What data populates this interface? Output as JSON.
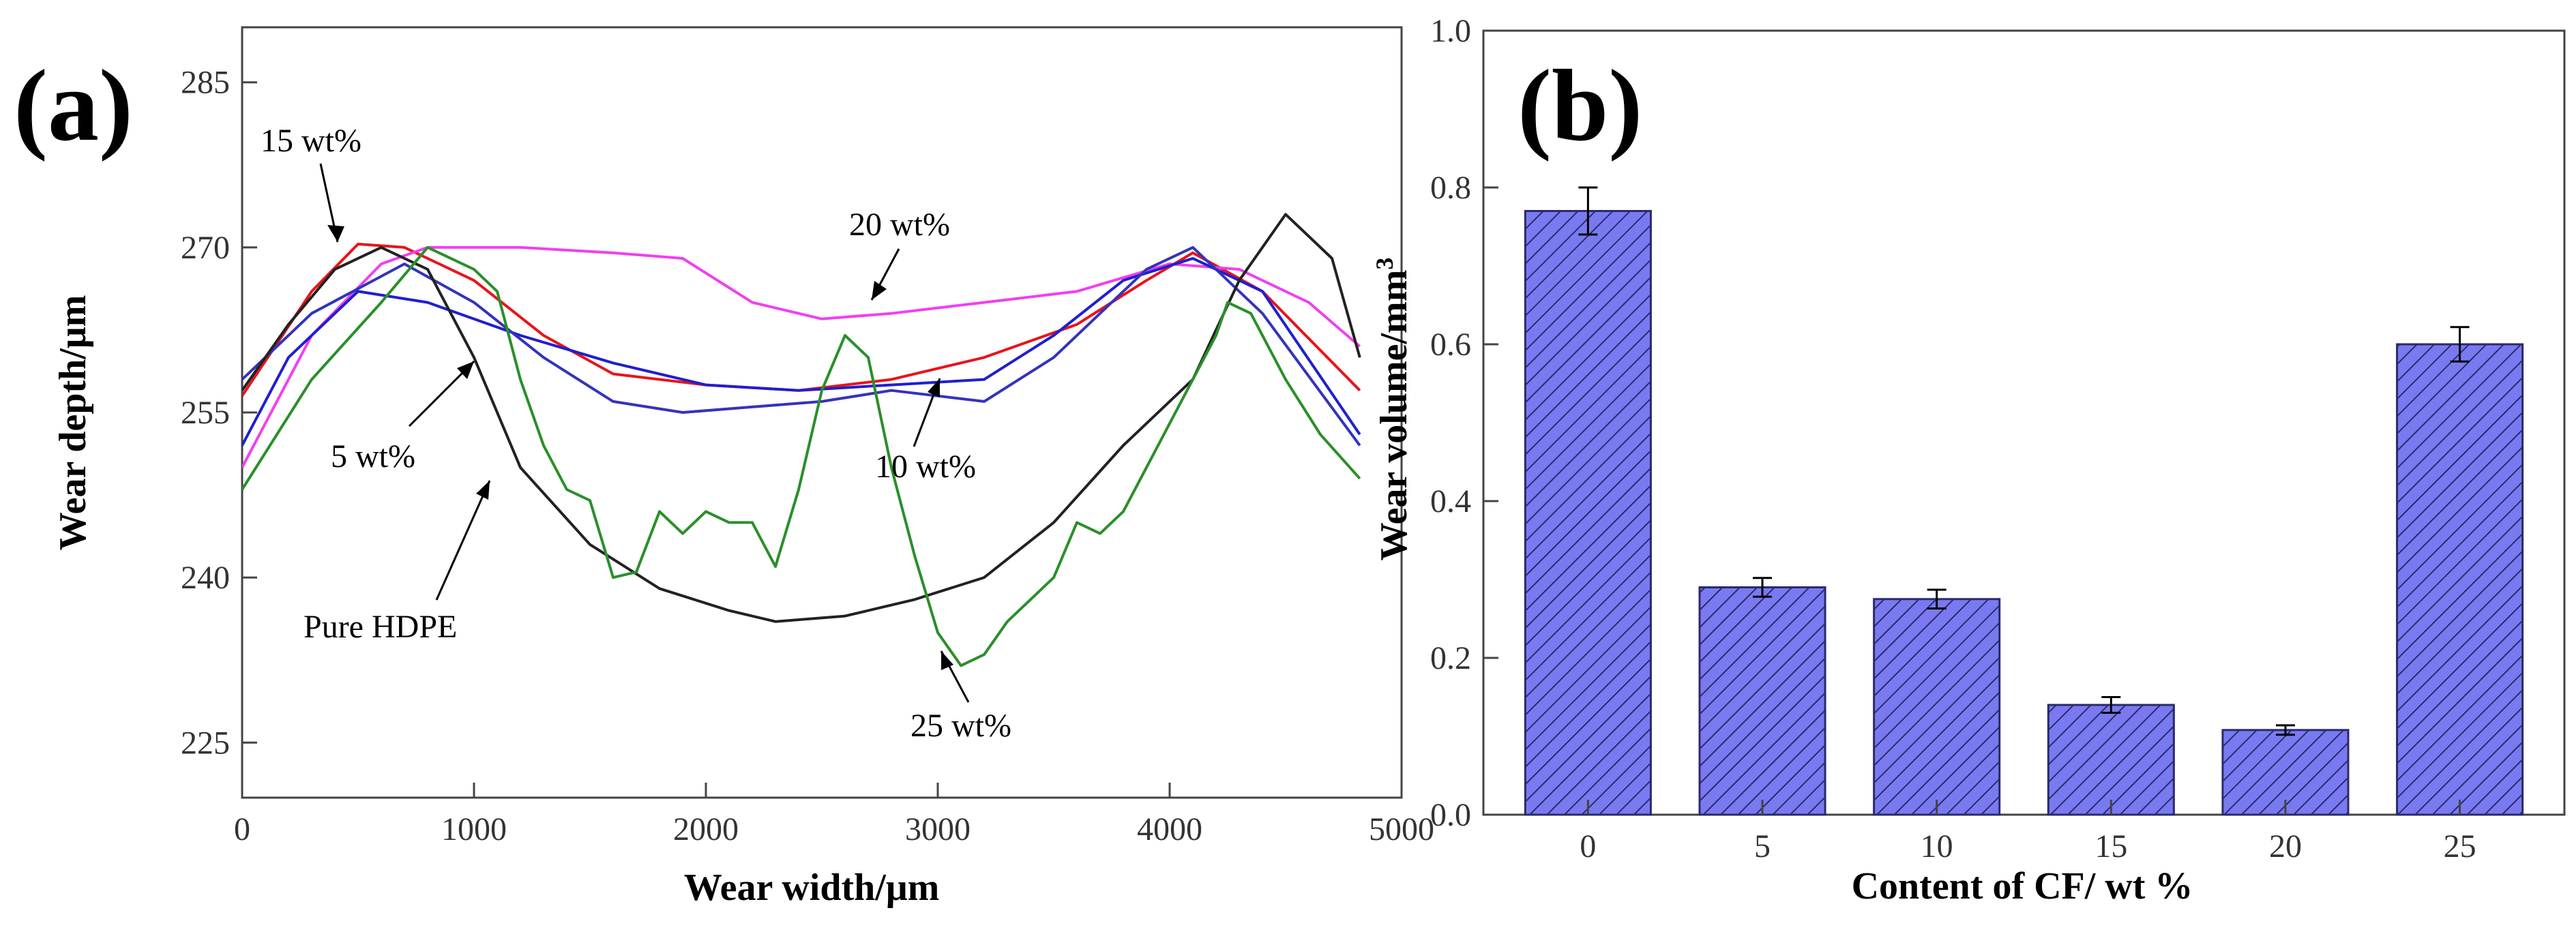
{
  "chart_data": [
    {
      "panel": "(a)",
      "type": "line",
      "xlabel": "Wear width/μm",
      "ylabel": "Wear depth/μm",
      "xlim": [
        0,
        5000
      ],
      "ylim": [
        220,
        290
      ],
      "xticks": [
        "0",
        "1000",
        "2000",
        "3000",
        "4000",
        "5000"
      ],
      "yticks": [
        "225",
        "240",
        "255",
        "270",
        "285"
      ],
      "grid": false,
      "annotations": [
        "15 wt%",
        "20 wt%",
        "5 wt%",
        "10 wt%",
        "Pure HDPE",
        "25 wt%"
      ],
      "series": [
        {
          "name": "15 wt%",
          "color": "#e8141b",
          "x": [
            0,
            300,
            500,
            700,
            1000,
            1300,
            1600,
            2000,
            2400,
            2800,
            3200,
            3600,
            3900,
            4100,
            4400,
            4820
          ],
          "y": [
            256.5,
            266,
            270.3,
            270,
            267,
            262,
            258.5,
            257.5,
            257,
            258,
            260,
            263,
            267,
            269.5,
            266,
            257
          ]
        },
        {
          "name": "20 wt%",
          "color": "#f040f0",
          "x": [
            0,
            300,
            600,
            800,
            1200,
            1600,
            1900,
            2200,
            2500,
            2800,
            3200,
            3600,
            4000,
            4300,
            4600,
            4820
          ],
          "y": [
            250,
            262,
            268.5,
            270,
            270,
            269.5,
            269,
            265,
            263.5,
            264,
            265,
            266,
            268.5,
            268,
            265,
            261
          ]
        },
        {
          "name": "5 wt%",
          "color": "#1f1fcf",
          "x": [
            0,
            200,
            500,
            800,
            1200,
            1600,
            2000,
            2400,
            2800,
            3200,
            3500,
            3800,
            4100,
            4400,
            4820
          ],
          "y": [
            252,
            260,
            266,
            265,
            262,
            259.5,
            257.5,
            257,
            257.5,
            258,
            262,
            267,
            269,
            266,
            253
          ]
        },
        {
          "name": "10 wt%",
          "color": "#3333bb",
          "x": [
            0,
            300,
            700,
            1000,
            1300,
            1600,
            1900,
            2200,
            2500,
            2800,
            3200,
            3500,
            3900,
            4100,
            4400,
            4820
          ],
          "y": [
            258,
            264,
            268.5,
            265,
            260,
            256,
            255,
            255.5,
            256,
            257,
            256,
            260,
            268,
            270,
            264,
            252
          ]
        },
        {
          "name": "Pure HDPE",
          "color": "#222222",
          "x": [
            0,
            200,
            400,
            600,
            800,
            1000,
            1200,
            1500,
            1800,
            2100,
            2300,
            2600,
            2900,
            3200,
            3500,
            3800,
            4100,
            4300,
            4500,
            4700,
            4820
          ],
          "y": [
            257,
            263,
            268,
            270,
            268,
            260,
            250,
            243,
            239,
            237,
            236,
            236.5,
            238,
            240,
            245,
            252,
            258,
            267,
            273,
            269,
            260
          ]
        },
        {
          "name": "25 wt%",
          "color": "#2a8f2a",
          "x": [
            0,
            300,
            600,
            800,
            1000,
            1100,
            1200,
            1300,
            1400,
            1500,
            1600,
            1700,
            1800,
            1900,
            2000,
            2100,
            2200,
            2300,
            2400,
            2500,
            2600,
            2700,
            2800,
            2900,
            3000,
            3100,
            3200,
            3300,
            3400,
            3500,
            3600,
            3700,
            3800,
            3900,
            4000,
            4100,
            4200,
            4250,
            4350,
            4500,
            4650,
            4820
          ],
          "y": [
            248,
            258,
            265,
            270,
            268,
            266,
            258,
            252,
            248,
            247,
            240,
            240.5,
            246,
            244,
            246,
            245,
            245,
            241,
            248,
            257,
            262,
            260,
            250,
            242,
            235,
            232,
            233,
            236,
            238,
            240,
            245,
            244,
            246,
            250,
            254,
            258,
            262,
            265,
            264,
            258,
            253,
            249
          ]
        }
      ]
    },
    {
      "panel": "(b)",
      "type": "bar",
      "xlabel": "Content of CF/ wt %",
      "ylabel": "Wear volume/mm",
      "ylabel_sup": "3",
      "categories": [
        "0",
        "5",
        "10",
        "15",
        "20",
        "25"
      ],
      "values": [
        0.77,
        0.29,
        0.275,
        0.14,
        0.108,
        0.6
      ],
      "errors": [
        0.03,
        0.012,
        0.012,
        0.01,
        0.006,
        0.022
      ],
      "ylim": [
        0.0,
        1.0
      ],
      "yticks": [
        "0.0",
        "0.2",
        "0.4",
        "0.6",
        "0.8",
        "1.0"
      ],
      "bar_color": "#7a7af0",
      "hatch_color": "#2a2a6e",
      "grid": false
    }
  ]
}
